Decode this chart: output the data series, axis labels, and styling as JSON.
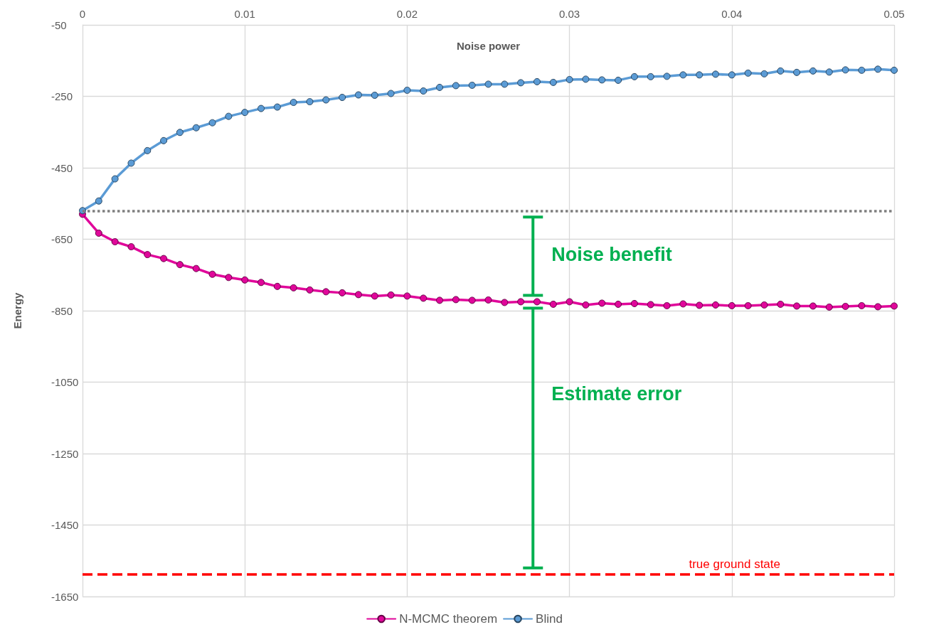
{
  "chart_data": {
    "type": "line",
    "xlabel": "Noise power",
    "ylabel": "Energy",
    "x": [
      0,
      0.001,
      0.002,
      0.003,
      0.004,
      0.005,
      0.006,
      0.007,
      0.008,
      0.009,
      0.01,
      0.011,
      0.012,
      0.013,
      0.014,
      0.015,
      0.016,
      0.017,
      0.018,
      0.019,
      0.02,
      0.021,
      0.022,
      0.023,
      0.024,
      0.025,
      0.026,
      0.027,
      0.028,
      0.029,
      0.03,
      0.031,
      0.032,
      0.033,
      0.034,
      0.035,
      0.036,
      0.037,
      0.038,
      0.039,
      0.04,
      0.041,
      0.042,
      0.043,
      0.044,
      0.045,
      0.046,
      0.047,
      0.048,
      0.049,
      0.05
    ],
    "series": [
      {
        "name": "N-MCMC theorem",
        "color": "#e0079a",
        "values": [
          -580,
          -633,
          -657,
          -671,
          -693,
          -704,
          -721,
          -732,
          -748,
          -757,
          -764,
          -771,
          -782,
          -786,
          -792,
          -797,
          -800,
          -805,
          -809,
          -806,
          -809,
          -815,
          -821,
          -819,
          -821,
          -820,
          -827,
          -825,
          -825,
          -832,
          -825,
          -834,
          -829,
          -832,
          -830,
          -833,
          -836,
          -831,
          -835,
          -834,
          -836,
          -836,
          -834,
          -832,
          -837,
          -837,
          -840,
          -838,
          -836,
          -839,
          -837
        ]
      },
      {
        "name": "Blind",
        "color": "#5b9bd5",
        "values": [
          -570,
          -543,
          -481,
          -437,
          -402,
          -374,
          -351,
          -338,
          -324,
          -306,
          -295,
          -284,
          -280,
          -267,
          -265,
          -260,
          -253,
          -246,
          -247,
          -242,
          -233,
          -235,
          -225,
          -220,
          -219,
          -216,
          -216,
          -212,
          -209,
          -211,
          -203,
          -202,
          -204,
          -205,
          -195,
          -195,
          -194,
          -190,
          -190,
          -188,
          -190,
          -185,
          -187,
          -179,
          -183,
          -179,
          -182,
          -176,
          -177,
          -174,
          -177
        ]
      }
    ],
    "xlim": [
      0,
      0.05
    ],
    "xticks": [
      0,
      0.01,
      0.02,
      0.03,
      0.04,
      0.05
    ],
    "ylim": [
      -1650,
      -50
    ],
    "yticks": [
      -1650,
      -1450,
      -1250,
      -1050,
      -850,
      -650,
      -450,
      -250,
      -50
    ],
    "ref_lines": [
      {
        "axis": "y",
        "value": -570,
        "label": null,
        "color": "#7f7f7f",
        "line_style": "dotted"
      },
      {
        "axis": "y",
        "value": -1588,
        "label": "true ground state",
        "color": "#ff0000",
        "line_style": "dashed"
      }
    ],
    "annotations": [
      "Noise benefit",
      "Estimate error"
    ],
    "grid": true,
    "legend": "bottom",
    "marker": "circle",
    "line_style": "solid"
  }
}
